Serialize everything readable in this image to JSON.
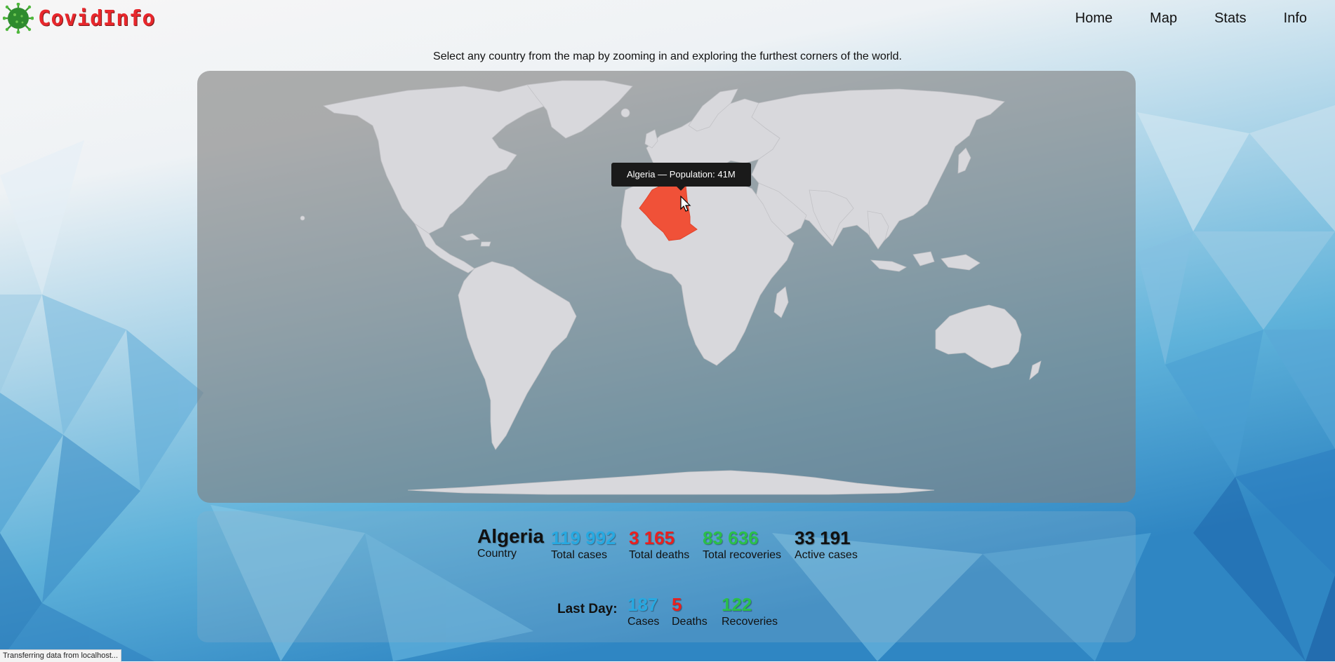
{
  "app": {
    "title": "CovidInfo"
  },
  "nav": {
    "items": [
      "Home",
      "Map",
      "Stats",
      "Info"
    ]
  },
  "intro": "Select any country from the map by zooming in and exploring the furthest corners of the world.",
  "map": {
    "tooltip": "Algeria — Population: 41M",
    "selected_country": "Algeria",
    "selected_color": "#f05138"
  },
  "stats": {
    "country": {
      "value": "Algeria",
      "label": "Country"
    },
    "total_cases": {
      "value": "119 992",
      "label": "Total cases"
    },
    "total_deaths": {
      "value": "3 165",
      "label": "Total deaths"
    },
    "total_recoveries": {
      "value": "83 636",
      "label": "Total recoveries"
    },
    "active_cases": {
      "value": "33 191",
      "label": "Active cases"
    }
  },
  "last_day": {
    "label": "Last Day:",
    "cases": {
      "value": "187",
      "label": "Cases"
    },
    "deaths": {
      "value": "5",
      "label": "Deaths"
    },
    "recoveries": {
      "value": "122",
      "label": "Recoveries"
    }
  },
  "status_bar": "Transferring data from localhost...",
  "colors": {
    "cases": "#27a9e1",
    "deaths": "#e8201f",
    "recoveries": "#2bbf4a",
    "logo": "#e8272c"
  }
}
